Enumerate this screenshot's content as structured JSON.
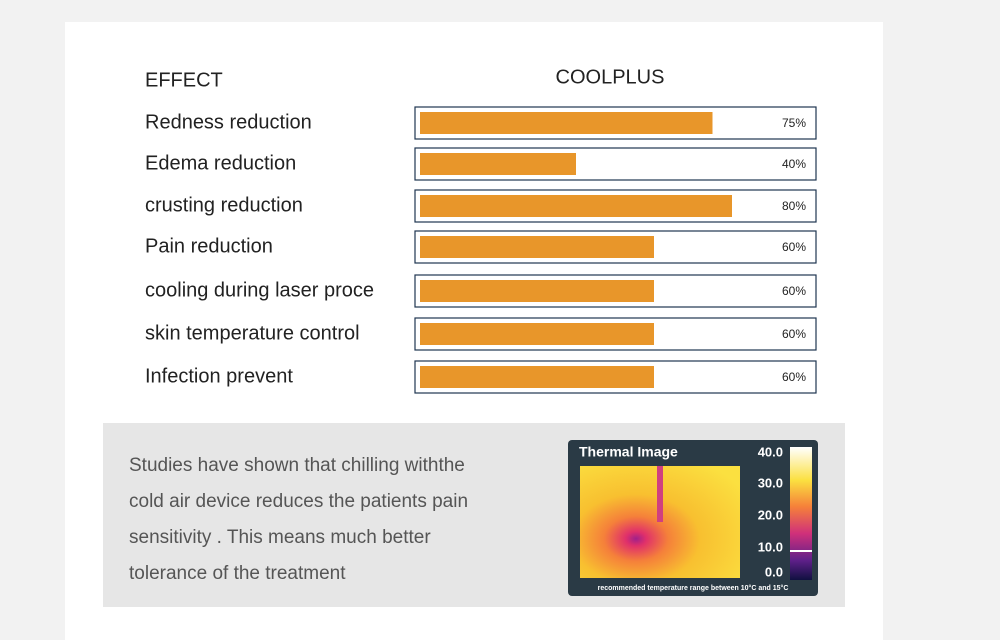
{
  "chart_data": {
    "type": "bar",
    "category_header": "EFFECT",
    "series_header": "COOLPLUS",
    "categories": [
      "Redness reduction",
      "Edema reduction",
      "crusting reduction",
      "Pain reduction",
      "cooling during laser proce",
      "skin temperature control",
      "Infection prevent"
    ],
    "values": [
      75,
      40,
      80,
      60,
      60,
      60,
      60
    ],
    "value_labels": [
      "75%",
      "40%",
      "80%",
      "60%",
      "60%",
      "60%",
      "60%"
    ],
    "color": "#e8962a"
  },
  "note": {
    "lines": [
      "Studies have shown that chilling withthe",
      "cold air device reduces the patients pain",
      "sensitivity . This means much  better",
      "tolerance of the treatment"
    ]
  },
  "thermal_image": {
    "title": "Thermal Image",
    "scale": [
      {
        "value": 40,
        "label": "40.0"
      },
      {
        "value": 30,
        "label": "30.0"
      },
      {
        "value": 20,
        "label": "20.0"
      },
      {
        "value": 10,
        "label": "10.0"
      },
      {
        "value": 0,
        "label": "0.0"
      }
    ],
    "caption": "recommended temperature range between 10°C and 15°C"
  }
}
